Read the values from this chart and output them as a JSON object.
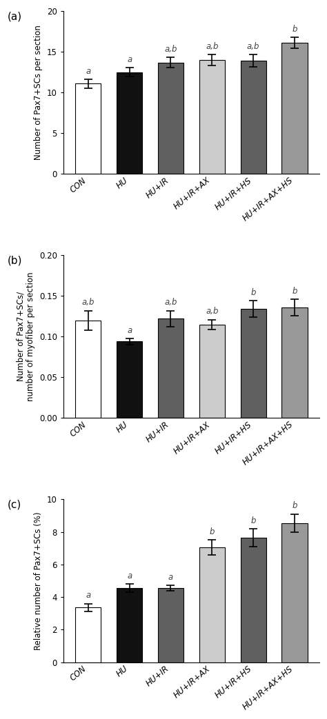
{
  "categories": [
    "CON",
    "HU",
    "HU+IR",
    "HU+IR+AX",
    "HU+IR+HS",
    "HU+IR+AX+HS"
  ],
  "bar_colors": [
    "#ffffff",
    "#111111",
    "#606060",
    "#cccccc",
    "#606060",
    "#999999"
  ],
  "bar_edgecolor": "#000000",
  "panel_a": {
    "label": "(a)",
    "values": [
      11.1,
      12.5,
      13.7,
      14.0,
      13.9,
      16.1
    ],
    "errors": [
      0.55,
      0.55,
      0.6,
      0.7,
      0.75,
      0.7
    ],
    "ylabel": "Number of Pax7+SCs per section",
    "ylim": [
      0,
      20
    ],
    "yticks": [
      0,
      5,
      10,
      15,
      20
    ],
    "significance": [
      "a",
      "a",
      "a,b",
      "a,b",
      "a,b",
      "b"
    ]
  },
  "panel_b": {
    "label": "(b)",
    "values": [
      0.12,
      0.094,
      0.122,
      0.115,
      0.134,
      0.136
    ],
    "errors": [
      0.012,
      0.004,
      0.01,
      0.006,
      0.01,
      0.01
    ],
    "ylabel": "Number of Pax7+SCs/\nnumber of myofiber per section",
    "ylim": [
      0,
      0.2
    ],
    "yticks": [
      0.0,
      0.05,
      0.1,
      0.15,
      0.2
    ],
    "significance": [
      "a,b",
      "a",
      "a,b",
      "a,b",
      "b",
      "b"
    ]
  },
  "panel_c": {
    "label": "(c)",
    "values": [
      3.35,
      4.55,
      4.55,
      7.05,
      7.65,
      8.55
    ],
    "errors": [
      0.25,
      0.25,
      0.18,
      0.45,
      0.55,
      0.55
    ],
    "ylabel": "Relative number of Pax7+SCs (%)",
    "ylim": [
      0,
      10
    ],
    "yticks": [
      0,
      2,
      4,
      6,
      8,
      10
    ],
    "significance": [
      "a",
      "a",
      "a",
      "b",
      "b",
      "b"
    ]
  },
  "xlabel_fontsize": 8.5,
  "ylabel_fontsize": 8.5,
  "tick_fontsize": 8.5,
  "sig_fontsize": 8.5,
  "label_fontsize": 11,
  "bar_width": 0.62
}
